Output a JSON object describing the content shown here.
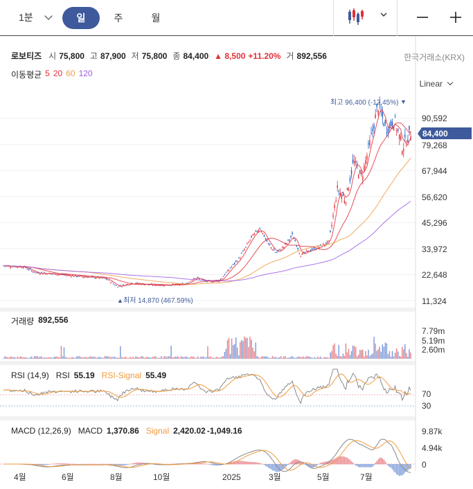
{
  "toolbar": {
    "timeframe": "1분",
    "periods": [
      {
        "label": "일",
        "active": true
      },
      {
        "label": "주",
        "active": false
      },
      {
        "label": "월",
        "active": false
      }
    ],
    "chart_type_icon": "candlestick-icon",
    "minimize_icon": "minus-icon",
    "add_icon": "plus-icon"
  },
  "quote": {
    "name": "로보티즈",
    "open_label": "시",
    "open": "75,800",
    "high_label": "고",
    "high": "87,900",
    "low_label": "저",
    "low": "75,800",
    "close_label": "종",
    "close": "84,400",
    "change": "▲ 8,500",
    "change_pct": "+11.20%",
    "volume_label": "거",
    "volume": "892,556",
    "exchange": "한국거래소(KRX)"
  },
  "ma": {
    "label": "이동평균",
    "periods": [
      {
        "value": "5",
        "color": "#e0303a"
      },
      {
        "value": "20",
        "color": "#e0303a"
      },
      {
        "value": "60",
        "color": "#f09a3e"
      },
      {
        "value": "120",
        "color": "#9b5de5"
      }
    ]
  },
  "scale": {
    "label": "Linear"
  },
  "price_axis": {
    "ticks": [
      "90,592",
      "79,268",
      "67,944",
      "56,620",
      "45,296",
      "33,972",
      "22,648",
      "11,324"
    ],
    "current_price": "84,400",
    "max_label": "최고 96,400 (-12.45%)",
    "min_label": "최저 14,870 (467.59%)"
  },
  "volume_pane": {
    "label": "거래량",
    "value": "892,556",
    "ticks": [
      "7.79m",
      "5.19m",
      "2.60m"
    ]
  },
  "rsi_pane": {
    "label": "RSI (14,9)",
    "rsi_label": "RSI",
    "rsi_value": "55.19",
    "signal_label": "RSI-Signal",
    "signal_value": "55.49",
    "upper": "70",
    "lower": "30",
    "upper_color": "#e0303a",
    "lower_color": "#1e73be"
  },
  "macd_pane": {
    "label": "MACD (12,26,9)",
    "macd_label": "MACD",
    "macd_value": "1,370.86",
    "signal_label": "Signal",
    "signal_value": "2,420.02",
    "hist_value": "-1,049.16",
    "ticks": [
      "9.87k",
      "4.94k",
      "0"
    ]
  },
  "x_axis": {
    "ticks": [
      "4월",
      "6월",
      "8월",
      "10월",
      "2025",
      "3월",
      "5월",
      "7월"
    ]
  },
  "chart_data": {
    "type": "candlestick",
    "y_ticks": [
      90592,
      79268,
      67944,
      56620,
      45296,
      33972,
      22648,
      11324
    ],
    "price_path": [
      [
        0,
        26500
      ],
      [
        5,
        26000
      ],
      [
        8,
        23500
      ],
      [
        12,
        23000
      ],
      [
        18,
        22000
      ],
      [
        25,
        21000
      ],
      [
        28,
        17500
      ],
      [
        32,
        19000
      ],
      [
        37,
        18000
      ],
      [
        45,
        18500
      ],
      [
        47,
        21500
      ],
      [
        50,
        19500
      ],
      [
        53,
        20000
      ],
      [
        56,
        26000
      ],
      [
        58,
        30000
      ],
      [
        61,
        39000
      ],
      [
        63,
        43000
      ],
      [
        65,
        36000
      ],
      [
        67,
        32000
      ],
      [
        69,
        35000
      ],
      [
        71,
        40000
      ],
      [
        73,
        31000
      ],
      [
        75,
        33000
      ],
      [
        78,
        35000
      ],
      [
        80,
        37000
      ],
      [
        82,
        60000
      ],
      [
        84,
        55000
      ],
      [
        86,
        72000
      ],
      [
        88,
        65000
      ],
      [
        90,
        80000
      ],
      [
        92,
        96400
      ],
      [
        94,
        86000
      ],
      [
        96,
        90000
      ],
      [
        98,
        78000
      ],
      [
        100,
        84400
      ]
    ]
  }
}
